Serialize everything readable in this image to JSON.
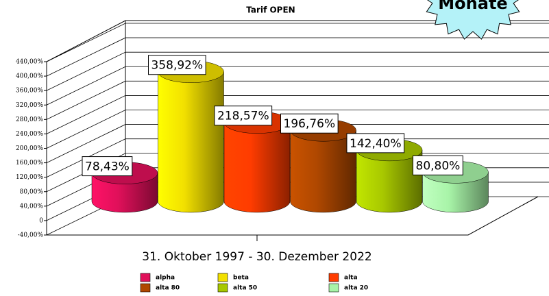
{
  "chart_data": {
    "type": "bar3d",
    "title": "Tarif OPEN",
    "annotation": "Monate",
    "categories": [
      "31. Oktober 1997 - 30. Dezember 2022"
    ],
    "ylim": [
      -40,
      440
    ],
    "yticks": [
      {
        "value": -40,
        "label": "-40,00%"
      },
      {
        "value": 0,
        "label": "0"
      },
      {
        "value": 40,
        "label": "40,00%"
      },
      {
        "value": 80,
        "label": "80,00%"
      },
      {
        "value": 120,
        "label": "120,00%"
      },
      {
        "value": 160,
        "label": "160,00%"
      },
      {
        "value": 200,
        "label": "200,00%"
      },
      {
        "value": 240,
        "label": "240,00%"
      },
      {
        "value": 280,
        "label": "280,00%"
      },
      {
        "value": 320,
        "label": "320,00%"
      },
      {
        "value": 360,
        "label": "360,00%"
      },
      {
        "value": 400,
        "label": "400,00%"
      },
      {
        "value": 440,
        "label": "440,00%"
      }
    ],
    "grid": true,
    "series": [
      {
        "name": "alpha",
        "color": "#e0105a",
        "values": [
          78.43
        ],
        "value_labels": [
          "78,43%"
        ]
      },
      {
        "name": "beta",
        "color": "#f2e000",
        "values": [
          358.92
        ],
        "value_labels": [
          "358,92%"
        ]
      },
      {
        "name": "alta",
        "color": "#ff3c00",
        "values": [
          218.57
        ],
        "value_labels": [
          "218,57%"
        ]
      },
      {
        "name": "alta 80",
        "color": "#b04800",
        "values": [
          196.76
        ],
        "value_labels": [
          "196,76%"
        ]
      },
      {
        "name": "alta 50",
        "color": "#a8c800",
        "values": [
          142.4
        ],
        "value_labels": [
          "142,40%"
        ]
      },
      {
        "name": "alta 20",
        "color": "#a8f4a8",
        "values": [
          80.8
        ],
        "value_labels": [
          "80,80%"
        ]
      }
    ]
  }
}
